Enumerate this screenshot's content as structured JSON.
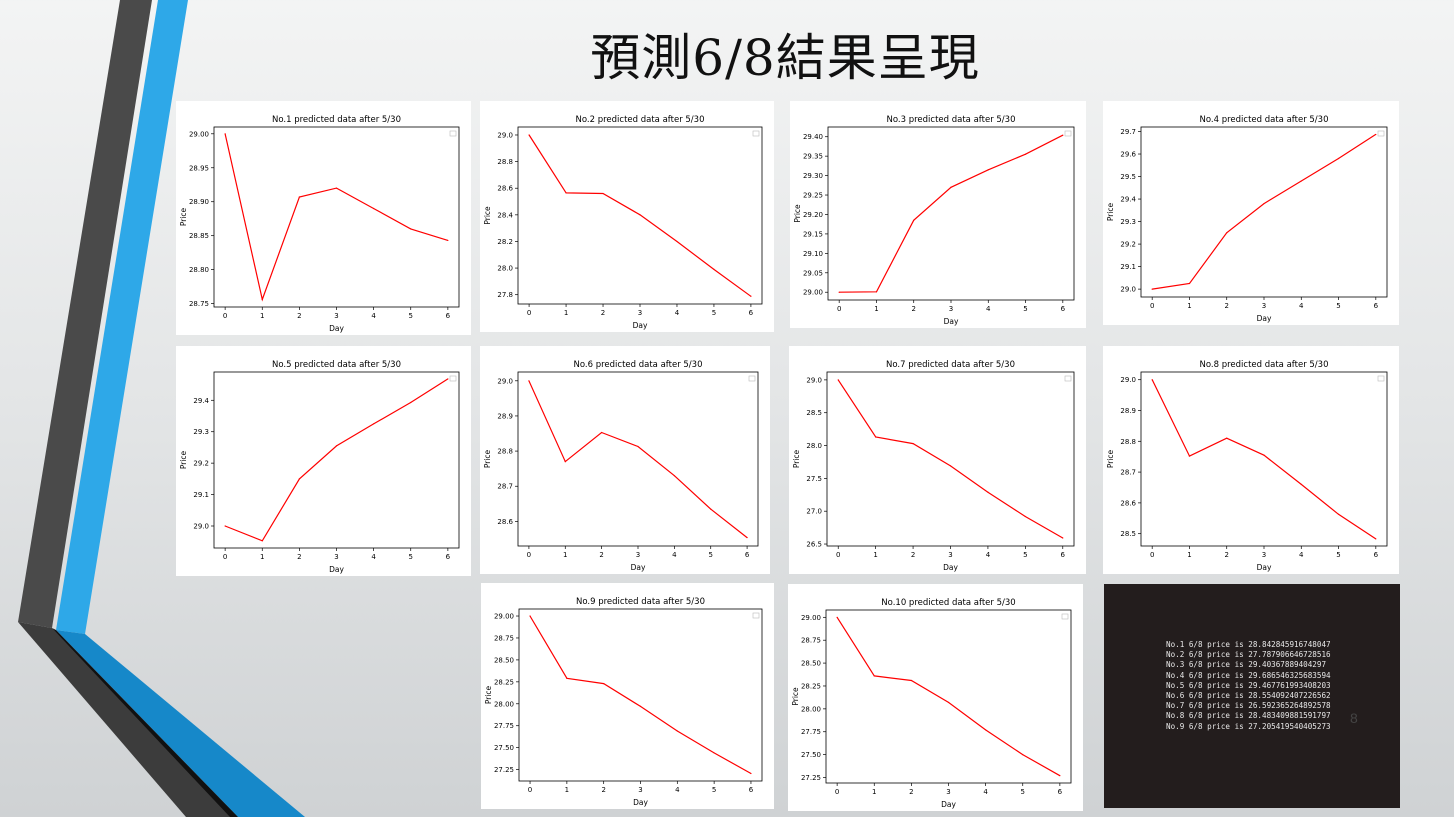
{
  "slide": {
    "title": "預測6/8結果呈現",
    "page_number": "8"
  },
  "colors": {
    "line": "#ff0000",
    "accent_blue": "#2ea8e8",
    "dark_stripe": "#4a4a4a",
    "console_bg": "#231d1d"
  },
  "chart_data": [
    {
      "type": "line",
      "title": "No.1 predicted data after 5/30",
      "xlabel": "Day",
      "ylabel": "Price",
      "x": [
        0,
        1,
        2,
        3,
        4,
        5,
        6
      ],
      "values": [
        29.0,
        28.756,
        28.907,
        28.92,
        28.89,
        28.86,
        28.843
      ],
      "ylim": [
        28.745,
        29.01
      ],
      "yticks": [
        28.75,
        28.8,
        28.85,
        28.9,
        28.95,
        29.0
      ],
      "ydec": 2,
      "legend": "top-right"
    },
    {
      "type": "line",
      "title": "No.2 predicted data after 5/30",
      "xlabel": "Day",
      "ylabel": "Price",
      "x": [
        0,
        1,
        2,
        3,
        4,
        5,
        6
      ],
      "values": [
        29.0,
        28.565,
        28.56,
        28.4,
        28.2,
        27.99,
        27.788
      ],
      "ylim": [
        27.73,
        29.06
      ],
      "yticks": [
        27.8,
        28.0,
        28.2,
        28.4,
        28.6,
        28.8,
        29.0
      ],
      "ydec": 1,
      "legend": "top-right"
    },
    {
      "type": "line",
      "title": "No.3 predicted data after 5/30",
      "xlabel": "Day",
      "ylabel": "Price",
      "x": [
        0,
        1,
        2,
        3,
        4,
        5,
        6
      ],
      "values": [
        29.0,
        29.001,
        29.185,
        29.27,
        29.315,
        29.355,
        29.404
      ],
      "ylim": [
        28.98,
        29.425
      ],
      "yticks": [
        29.0,
        29.05,
        29.1,
        29.15,
        29.2,
        29.25,
        29.3,
        29.35,
        29.4
      ],
      "ydec": 2,
      "legend": "top-right"
    },
    {
      "type": "line",
      "title": "No.4 predicted data after 5/30",
      "xlabel": "Day",
      "ylabel": "Price",
      "x": [
        0,
        1,
        2,
        3,
        4,
        5,
        6
      ],
      "values": [
        29.0,
        29.025,
        29.25,
        29.38,
        29.48,
        29.58,
        29.687
      ],
      "ylim": [
        28.965,
        29.72
      ],
      "yticks": [
        29.0,
        29.1,
        29.2,
        29.3,
        29.4,
        29.5,
        29.6,
        29.7
      ],
      "ydec": 1,
      "legend": "top-right"
    },
    {
      "type": "line",
      "title": "No.5 predicted data after 5/30",
      "xlabel": "Day",
      "ylabel": "Price",
      "x": [
        0,
        1,
        2,
        3,
        4,
        5,
        6
      ],
      "values": [
        29.0,
        28.953,
        29.15,
        29.255,
        29.325,
        29.393,
        29.468
      ],
      "ylim": [
        28.93,
        29.49
      ],
      "yticks": [
        29.0,
        29.1,
        29.2,
        29.3,
        29.4
      ],
      "ydec": 1,
      "legend": "top-right"
    },
    {
      "type": "line",
      "title": "No.6 predicted data after 5/30",
      "xlabel": "Day",
      "ylabel": "Price",
      "x": [
        0,
        1,
        2,
        3,
        4,
        5,
        6
      ],
      "values": [
        29.0,
        28.77,
        28.853,
        28.813,
        28.73,
        28.635,
        28.554
      ],
      "ylim": [
        28.53,
        29.025
      ],
      "yticks": [
        28.6,
        28.7,
        28.8,
        28.9,
        29.0
      ],
      "ydec": 1,
      "legend": "top-right"
    },
    {
      "type": "line",
      "title": "No.7 predicted data after 5/30",
      "xlabel": "Day",
      "ylabel": "Price",
      "x": [
        0,
        1,
        2,
        3,
        4,
        5,
        6
      ],
      "values": [
        29.0,
        28.13,
        28.03,
        27.69,
        27.29,
        26.92,
        26.592
      ],
      "ylim": [
        26.47,
        29.12
      ],
      "yticks": [
        26.5,
        27.0,
        27.5,
        28.0,
        28.5,
        29.0
      ],
      "ydec": 1,
      "legend": "top-right"
    },
    {
      "type": "line",
      "title": "No.8 predicted data after 5/30",
      "xlabel": "Day",
      "ylabel": "Price",
      "x": [
        0,
        1,
        2,
        3,
        4,
        5,
        6
      ],
      "values": [
        29.0,
        28.752,
        28.81,
        28.755,
        28.66,
        28.563,
        28.483
      ],
      "ylim": [
        28.46,
        29.025
      ],
      "yticks": [
        28.5,
        28.6,
        28.7,
        28.8,
        28.9,
        29.0
      ],
      "ydec": 1,
      "legend": "top-right"
    },
    {
      "type": "line",
      "title": "No.9 predicted data after 5/30",
      "xlabel": "Day",
      "ylabel": "Price",
      "x": [
        0,
        1,
        2,
        3,
        4,
        5,
        6
      ],
      "values": [
        29.0,
        28.29,
        28.23,
        27.97,
        27.69,
        27.44,
        27.205
      ],
      "ylim": [
        27.12,
        29.08
      ],
      "yticks": [
        27.25,
        27.5,
        27.75,
        28.0,
        28.25,
        28.5,
        28.75,
        29.0
      ],
      "ydec": 2,
      "legend": "top-right"
    },
    {
      "type": "line",
      "title": "No.10 predicted data after 5/30",
      "xlabel": "Day",
      "ylabel": "Price",
      "x": [
        0,
        1,
        2,
        3,
        4,
        5,
        6
      ],
      "values": [
        29.0,
        28.36,
        28.31,
        28.07,
        27.77,
        27.5,
        27.27
      ],
      "ylim": [
        27.19,
        29.08
      ],
      "yticks": [
        27.25,
        27.5,
        27.75,
        28.0,
        28.25,
        28.5,
        28.75,
        29.0
      ],
      "ydec": 2,
      "legend": "top-right"
    }
  ],
  "console": {
    "lines": [
      "No.1 6/8 price is 28.842845916748047",
      "No.2 6/8 price is 27.787906646728516",
      "No.3 6/8 price is 29.40367889404297",
      "No.4 6/8 price is 29.686546325683594",
      "No.5 6/8 price is 29.467761993408203",
      "No.6 6/8 price is 28.554092407226562",
      "No.7 6/8 price is 26.592365264892578",
      "No.8 6/8 price is 28.483409881591797",
      "No.9 6/8 price is 27.205419540405273"
    ]
  }
}
